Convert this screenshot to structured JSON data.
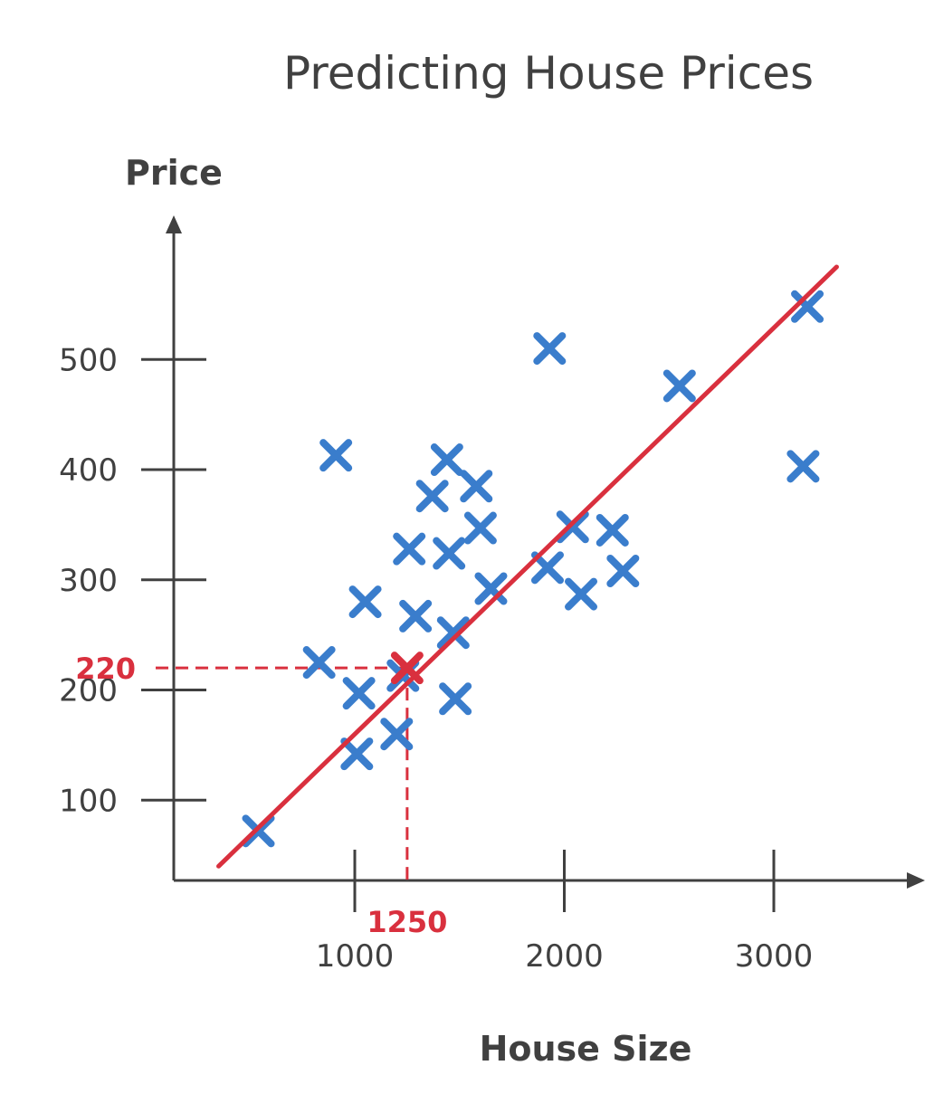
{
  "chart_data": {
    "type": "scatter",
    "title": "Predicting House Prices",
    "xlabel": "House Size",
    "ylabel": "Price",
    "x_ticks": [
      1000,
      2000,
      3000
    ],
    "y_ticks": [
      100,
      200,
      300,
      400,
      500
    ],
    "x_tick_labels": [
      "1000",
      "2000",
      "3000"
    ],
    "y_tick_labels": [
      "100",
      "200",
      "300",
      "400",
      "500"
    ],
    "grid": false,
    "points": [
      {
        "x": 540,
        "y": 72
      },
      {
        "x": 830,
        "y": 225
      },
      {
        "x": 910,
        "y": 413
      },
      {
        "x": 1010,
        "y": 142
      },
      {
        "x": 1020,
        "y": 197
      },
      {
        "x": 1050,
        "y": 280
      },
      {
        "x": 1200,
        "y": 160
      },
      {
        "x": 1230,
        "y": 213
      },
      {
        "x": 1260,
        "y": 328
      },
      {
        "x": 1290,
        "y": 267
      },
      {
        "x": 1370,
        "y": 376
      },
      {
        "x": 1440,
        "y": 409
      },
      {
        "x": 1450,
        "y": 324
      },
      {
        "x": 1470,
        "y": 252
      },
      {
        "x": 1480,
        "y": 192
      },
      {
        "x": 1580,
        "y": 385
      },
      {
        "x": 1600,
        "y": 347
      },
      {
        "x": 1650,
        "y": 292
      },
      {
        "x": 1930,
        "y": 510
      },
      {
        "x": 1920,
        "y": 311
      },
      {
        "x": 2040,
        "y": 348
      },
      {
        "x": 2080,
        "y": 287
      },
      {
        "x": 2230,
        "y": 345
      },
      {
        "x": 2280,
        "y": 308
      },
      {
        "x": 2550,
        "y": 476
      },
      {
        "x": 3140,
        "y": 403
      },
      {
        "x": 3160,
        "y": 548
      }
    ],
    "fit_line": {
      "x": [
        350,
        3300
      ],
      "y": [
        40,
        584
      ]
    },
    "prediction": {
      "x": 1250,
      "y": 220,
      "x_label": "1250",
      "y_label": "220"
    },
    "colors": {
      "points": "#3a7dcc",
      "line": "#d9303e",
      "axis": "#404040"
    }
  }
}
